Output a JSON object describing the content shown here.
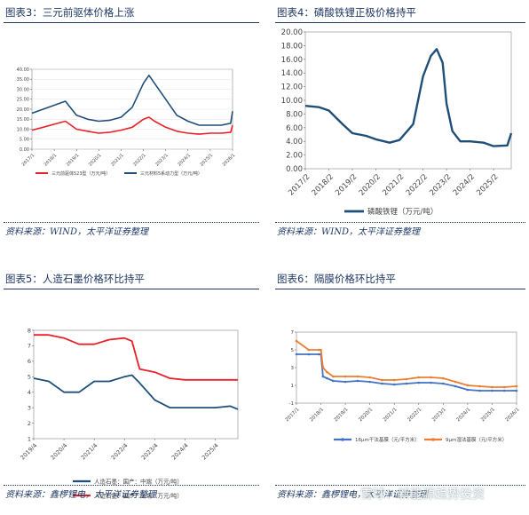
{
  "panels": [
    {
      "title": "图表3：三元前驱体价格上涨",
      "source": "资料来源：WIND，太平洋证券整理"
    },
    {
      "title": "图表4：磷酸铁锂正极价格持平",
      "source": "资料来源：WIND，太平洋证券整理"
    },
    {
      "title": "图表5：人造石墨价格环比持平",
      "source": "资料来源：鑫椤锂电，太平洋证券整理"
    },
    {
      "title": "图表6：隔膜价格环比持平",
      "source": "资料来源：鑫椤锂电，太平洋证券整理"
    }
  ],
  "watermark": "雪球：新能源趋势投资",
  "chart_data": [
    {
      "type": "line",
      "x": [
        "2017/1",
        "2017/7",
        "2018/1",
        "2018/7",
        "2019/1",
        "2019/7",
        "2020/1",
        "2020/7",
        "2021/1",
        "2021/7",
        "2022/1",
        "2022/4",
        "2022/7",
        "2023/1",
        "2023/7",
        "2024/1",
        "2024/7",
        "2025/1",
        "2025/7",
        "2025/12",
        "2026/1"
      ],
      "x_ticks": [
        "2017/1",
        "2018/1",
        "2019/1",
        "2020/1",
        "2021/1",
        "2022/1",
        "2023/1",
        "2024/1",
        "2025/1",
        "2026/1"
      ],
      "series": [
        {
          "name": "三元前驱体523型（万元/吨）",
          "color": "#e8202a",
          "values": [
            9.5,
            11,
            12.5,
            14,
            10,
            9,
            8,
            8.5,
            9.5,
            11,
            15,
            16,
            14,
            11,
            9,
            8,
            7.5,
            8,
            8,
            8.5,
            12
          ]
        },
        {
          "name": "三元材料5系动力型（万元/吨）",
          "color": "#1f4e79",
          "values": [
            18,
            20,
            22,
            24,
            17,
            15,
            14,
            14.5,
            16,
            21,
            33,
            37,
            33,
            25,
            17,
            14,
            12,
            12,
            12,
            13,
            19
          ]
        }
      ],
      "ylim": [
        0,
        40
      ],
      "y_ticks": [
        "0.00",
        "5.00",
        "10.00",
        "15.00",
        "20.00",
        "25.00",
        "30.00",
        "35.00",
        "40.00"
      ],
      "legend": "bottom"
    },
    {
      "type": "line",
      "x": [
        "2017/2",
        "2017/9",
        "2018/2",
        "2018/9",
        "2019/2",
        "2019/9",
        "2020/2",
        "2020/9",
        "2021/2",
        "2021/9",
        "2022/2",
        "2022/6",
        "2022/9",
        "2022/12",
        "2023/2",
        "2023/5",
        "2023/9",
        "2024/2",
        "2024/9",
        "2025/2",
        "2025/9",
        "2025/11"
      ],
      "x_ticks": [
        "2017/2",
        "2018/2",
        "2019/2",
        "2020/2",
        "2021/2",
        "2022/2",
        "2023/2",
        "2024/2",
        "2025/2"
      ],
      "series": [
        {
          "name": "磷酸铁锂（万元/吨）",
          "color": "#1f4e79",
          "values": [
            9.2,
            9.0,
            8.5,
            6.5,
            5.2,
            4.8,
            4.3,
            3.8,
            4.2,
            6.5,
            13.5,
            16.5,
            17.5,
            15.5,
            9.5,
            5.5,
            4,
            4,
            3.8,
            3.3,
            3.4,
            5.2
          ]
        }
      ],
      "ylim": [
        0,
        20
      ],
      "y_ticks": [
        "0.00",
        "2.00",
        "4.00",
        "6.00",
        "8.00",
        "10.00",
        "12.00",
        "14.00",
        "16.00",
        "18.00",
        "20.00"
      ],
      "legend": "bottom"
    },
    {
      "type": "line",
      "x": [
        "2019/4",
        "2019/10",
        "2020/4",
        "2020/10",
        "2021/4",
        "2021/10",
        "2022/4",
        "2022/7",
        "2022/10",
        "2023/4",
        "2023/10",
        "2024/4",
        "2024/10",
        "2025/4",
        "2025/10",
        "2026/1"
      ],
      "x_ticks": [
        "2019/4",
        "2020/4",
        "2021/4",
        "2022/4",
        "2023/4",
        "2024/4",
        "2025/4"
      ],
      "series": [
        {
          "name": "人造石墨：国产：中端（万元/吨）",
          "color": "#1f4e79",
          "values": [
            4.9,
            4.7,
            4.0,
            4.0,
            4.7,
            4.7,
            5.0,
            5.1,
            4.6,
            3.5,
            3.0,
            3.0,
            3.0,
            3.0,
            3.1,
            2.9
          ]
        },
        {
          "name": "人造石墨：国产：高端（万元/吨）",
          "color": "#e8202a",
          "values": [
            7.7,
            7.7,
            7.5,
            7.1,
            7.1,
            7.4,
            7.5,
            7.3,
            5.5,
            5.3,
            4.9,
            4.8,
            4.8,
            4.8,
            4.8,
            4.8
          ]
        }
      ],
      "ylim": [
        1,
        8
      ],
      "y_ticks": [
        "1",
        "2",
        "3",
        "4",
        "5",
        "6",
        "7",
        "8"
      ],
      "legend": "bottom"
    },
    {
      "type": "line",
      "x": [
        "2017/1",
        "2017/7",
        "2017/12",
        "2018/1",
        "2018/2",
        "2018/4",
        "2018/7",
        "2019/1",
        "2019/7",
        "2020/1",
        "2020/7",
        "2021/1",
        "2021/7",
        "2022/1",
        "2022/7",
        "2023/1",
        "2023/7",
        "2024/1",
        "2024/7",
        "2025/1",
        "2025/7",
        "2026/1"
      ],
      "x_ticks": [
        "2017/1",
        "2018/1",
        "2019/1",
        "2020/1",
        "2021/1",
        "2022/1",
        "2023/1",
        "2024/1",
        "2025/1",
        "2026/1"
      ],
      "series": [
        {
          "name": "16μm干法基膜（元/平方米）",
          "color": "#4472c4",
          "values": [
            4.5,
            4.5,
            4.5,
            4.5,
            2.0,
            1.8,
            1.5,
            1.4,
            1.5,
            1.4,
            1.2,
            1.1,
            1.2,
            1.3,
            1.3,
            1.2,
            0.9,
            0.5,
            0.4,
            0.4,
            0.4,
            0.4
          ]
        },
        {
          "name": "9μm湿法基膜（元/平方米）",
          "color": "#ed7d31",
          "values": [
            6.0,
            5.0,
            5.0,
            5.0,
            3.0,
            2.5,
            2.0,
            2.0,
            2.0,
            1.9,
            1.6,
            1.6,
            1.7,
            1.9,
            1.9,
            1.8,
            1.4,
            1.0,
            0.9,
            0.8,
            0.8,
            0.9
          ]
        }
      ],
      "ylim": [
        -1,
        7
      ],
      "y_ticks": [
        "-1",
        "1",
        "3",
        "5",
        "7"
      ],
      "legend": "bottom"
    }
  ]
}
